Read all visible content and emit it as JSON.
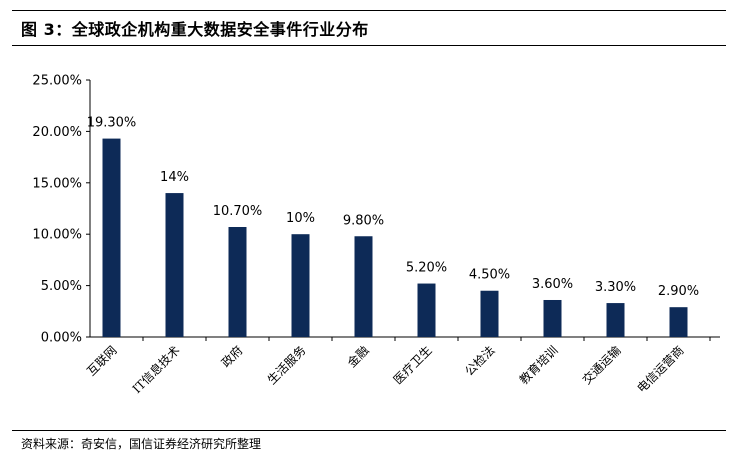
{
  "figure": {
    "title": "图 3：全球政企机构重大数据安全事件行业分布",
    "source": "资料来源：奇安信，国信证券经济研究所整理",
    "bar_color": "#0d2a57"
  },
  "chart_data": {
    "type": "bar",
    "categories": [
      "互联网",
      "IT信息技术",
      "政府",
      "生活服务",
      "金融",
      "医疗卫生",
      "公检法",
      "教育培训",
      "交通运输",
      "电信运营商"
    ],
    "values": [
      19.3,
      14,
      10.7,
      10,
      9.8,
      5.2,
      4.5,
      3.6,
      3.3,
      2.9
    ],
    "value_labels": [
      "19.30%",
      "14%",
      "10.70%",
      "10%",
      "9.80%",
      "5.20%",
      "4.50%",
      "3.60%",
      "3.30%",
      "2.90%"
    ],
    "yticks": [
      0,
      5,
      10,
      15,
      20,
      25
    ],
    "ytick_labels": [
      "0.00%",
      "5.00%",
      "10.00%",
      "15.00%",
      "20.00%",
      "25.00%"
    ],
    "ylim": [
      0,
      25
    ],
    "grid": false,
    "legend": "none"
  }
}
